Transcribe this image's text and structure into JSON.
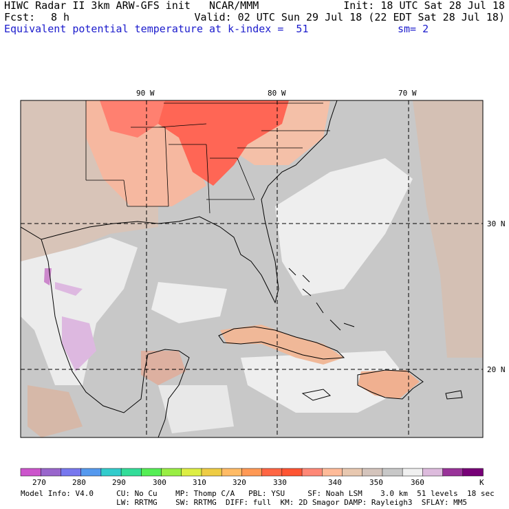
{
  "header": {
    "line1_left": "HIWC Radar II 3km ARW-GFS init   NCAR/MMM",
    "line1_right": "Init: 18 UTC Sat 28 Jul 18",
    "fcst_label": "Fcst:",
    "fcst_value": "8 h",
    "valid": "Valid: 02 UTC Sun 29 Jul 18 (22 EDT Sat 28 Jul 18)",
    "field": "Equivalent potential temperature",
    "level": "at k-index =  51",
    "smoothing": "sm= 2"
  },
  "map": {
    "lon_labels": [
      "90 W",
      "80 W",
      "70 W"
    ],
    "lat_labels": [
      "30 N",
      "20 N"
    ]
  },
  "colorbar": {
    "colors": [
      "#cc55cc",
      "#9966cc",
      "#7777ee",
      "#5599ee",
      "#33cccc",
      "#33dd99",
      "#55ee55",
      "#99ee44",
      "#ddee44",
      "#eecc44",
      "#ffbb66",
      "#ff9955",
      "#ff6644",
      "#ff5533",
      "#ff8877",
      "#ffbb99",
      "#e8c8b0",
      "#d4c4bc",
      "#c8c8c8",
      "#f0f0f0",
      "#ddbbdd",
      "#993399",
      "#770077"
    ],
    "tick_labels": [
      "270",
      "280",
      "290",
      "300",
      "310",
      "320",
      "330",
      "340",
      "350",
      "360"
    ],
    "unit": "K"
  },
  "footer": {
    "line1": "Model Info: V4.0     CU: No Cu    MP: Thomp C/A   PBL: YSU     SF: Noah LSM    3.0 km  51 levels  18 sec",
    "line2": "                     LW: RRTMG    SW: RRTMG  DIFF: full  KM: 2D Smagor DAMP: Rayleigh3  SFLAY: MM5"
  }
}
